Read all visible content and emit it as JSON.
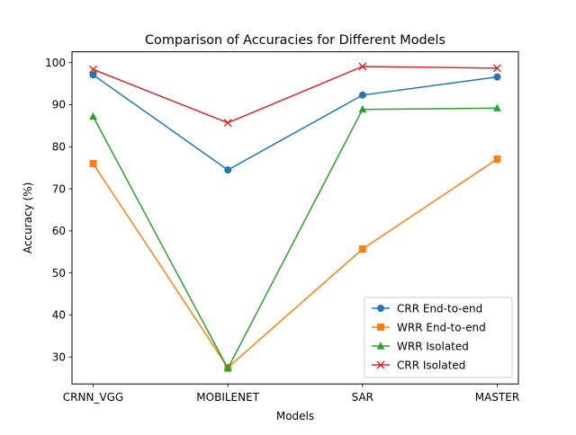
{
  "chart_data": {
    "type": "line",
    "title": "Comparison of Accuracies for Different Models",
    "xlabel": "Models",
    "ylabel": "Accuracy (%)",
    "categories": [
      "CRNN_VGG",
      "MOBILENET",
      "SAR",
      "MASTER"
    ],
    "ylim": [
      23.6,
      102.6
    ],
    "yticks": [
      30,
      40,
      50,
      60,
      70,
      80,
      90,
      100
    ],
    "grid": false,
    "legend_position": "lower-right",
    "series": [
      {
        "name": "CRR End-to-end",
        "color": "#1f77b4",
        "marker": "circle",
        "values": [
          97.1,
          74.5,
          92.3,
          96.6
        ]
      },
      {
        "name": "WRR End-to-end",
        "color": "#ff7f0e",
        "marker": "square",
        "values": [
          76.0,
          27.5,
          55.7,
          77.1
        ]
      },
      {
        "name": "WRR Isolated",
        "color": "#2ca02c",
        "marker": "triangle",
        "values": [
          87.2,
          27.3,
          88.9,
          89.2
        ]
      },
      {
        "name": "CRR Isolated",
        "color": "#d62728",
        "marker": "x",
        "values": [
          98.4,
          85.7,
          99.1,
          98.7
        ]
      }
    ]
  }
}
